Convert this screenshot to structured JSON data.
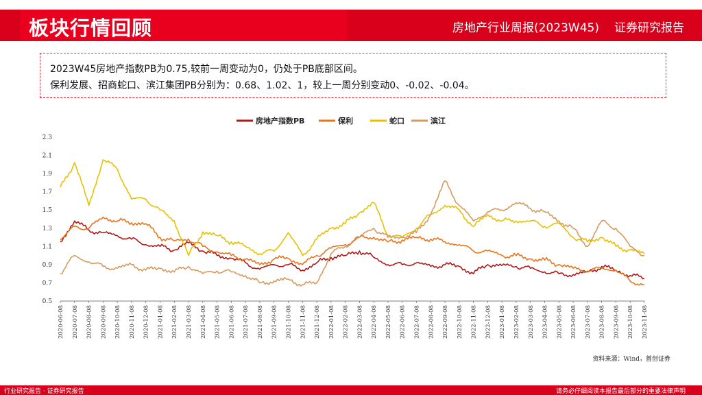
{
  "header": {
    "page_title": "板块行情回顾",
    "report_name": "房地产行业周报(2023W45)",
    "report_type": "证券研究报告",
    "colors": {
      "brand_red": "#d9001b"
    }
  },
  "summary": {
    "line1": "2023W45房地产指数PB为0.75,较前一周变动为0，仍处于PB底部区间。",
    "line2": "保利发展、招商蛇口、滨江集团PB分别为：0.68、1.02、1，较上一周分别变动0、-0.02、-0.04。"
  },
  "chart_data": {
    "type": "line",
    "title": "",
    "xlabel": "",
    "ylabel": "",
    "ylim": [
      0.5,
      2.3
    ],
    "yticks": [
      "2.3",
      "2.1",
      "1.9",
      "1.7",
      "1.5",
      "1.3",
      "1.1",
      "0.9",
      "0.7",
      "0.5"
    ],
    "legend_position": "top-center",
    "grid": false,
    "x": [
      "2020-06-08",
      "2020-07-08",
      "2020-08-08",
      "2020-09-08",
      "2020-10-08",
      "2020-11-08",
      "2020-12-08",
      "2021-01-08",
      "2021-02-08",
      "2021-03-08",
      "2021-04-08",
      "2021-05-08",
      "2021-06-08",
      "2021-07-08",
      "2021-08-08",
      "2021-09-08",
      "2021-10-08",
      "2021-11-08",
      "2021-12-08",
      "2022-01-08",
      "2022-02-08",
      "2022-03-08",
      "2022-04-08",
      "2022-05-08",
      "2022-06-08",
      "2022-07-08",
      "2022-08-08",
      "2022-09-08",
      "2022-10-08",
      "2022-11-08",
      "2022-12-08",
      "2023-01-08",
      "2023-02-08",
      "2023-03-08",
      "2023-04-08",
      "2023-05-08",
      "2023-06-08",
      "2023-07-08",
      "2023-08-08",
      "2023-09-08",
      "2023-10-08",
      "2023-11-08"
    ],
    "series": [
      {
        "name": "房地产指数PB",
        "color": "#b01818",
        "values": [
          1.15,
          1.38,
          1.28,
          1.25,
          1.22,
          1.18,
          1.12,
          1.1,
          1.06,
          1.14,
          1.05,
          1.0,
          0.97,
          0.92,
          0.85,
          0.9,
          0.9,
          0.84,
          0.92,
          0.98,
          1.0,
          1.05,
          0.98,
          0.9,
          0.9,
          0.92,
          0.88,
          0.9,
          0.88,
          0.8,
          0.9,
          0.89,
          0.88,
          0.86,
          0.82,
          0.8,
          0.79,
          0.82,
          0.88,
          0.84,
          0.78,
          0.75
        ]
      },
      {
        "name": "保利",
        "color": "#e8751a",
        "values": [
          1.17,
          1.32,
          1.3,
          1.42,
          1.38,
          1.36,
          1.35,
          1.2,
          1.16,
          1.18,
          1.1,
          1.04,
          1.0,
          0.96,
          0.9,
          0.96,
          0.97,
          0.9,
          1.0,
          1.08,
          1.12,
          1.2,
          1.2,
          1.15,
          1.17,
          1.2,
          1.18,
          1.15,
          1.12,
          1.05,
          1.05,
          1.0,
          1.0,
          0.96,
          0.95,
          0.9,
          0.86,
          0.83,
          0.86,
          0.84,
          0.72,
          0.68
        ]
      },
      {
        "name": "蛇口",
        "color": "#e8c000",
        "values": [
          1.75,
          2.02,
          1.55,
          2.05,
          1.95,
          1.62,
          1.62,
          1.5,
          1.38,
          1.0,
          1.26,
          1.22,
          1.15,
          1.1,
          1.02,
          1.05,
          1.25,
          1.0,
          1.18,
          1.3,
          1.35,
          1.47,
          1.58,
          1.22,
          1.2,
          1.3,
          1.45,
          1.55,
          1.5,
          1.32,
          1.45,
          1.38,
          1.38,
          1.38,
          1.32,
          1.35,
          1.2,
          1.15,
          1.2,
          1.1,
          1.06,
          1.02
        ]
      },
      {
        "name": "滨江",
        "color": "#d69a5e",
        "values": [
          0.8,
          1.0,
          0.93,
          0.88,
          0.86,
          0.9,
          0.84,
          0.86,
          0.82,
          0.88,
          0.8,
          0.83,
          0.82,
          0.78,
          0.7,
          0.72,
          0.74,
          0.68,
          0.7,
          1.02,
          1.1,
          1.2,
          1.3,
          1.2,
          1.2,
          1.25,
          1.45,
          1.82,
          1.55,
          1.38,
          1.48,
          1.5,
          1.58,
          1.52,
          1.48,
          1.38,
          1.3,
          1.1,
          1.38,
          1.3,
          1.1,
          1.0
        ]
      }
    ]
  },
  "source": "资料来源：Wind，首创证券",
  "footer": {
    "left": "行业研究报告 · 证券研究报告",
    "right": "请务必仔细阅读本报告最后部分的重要法律声明"
  }
}
